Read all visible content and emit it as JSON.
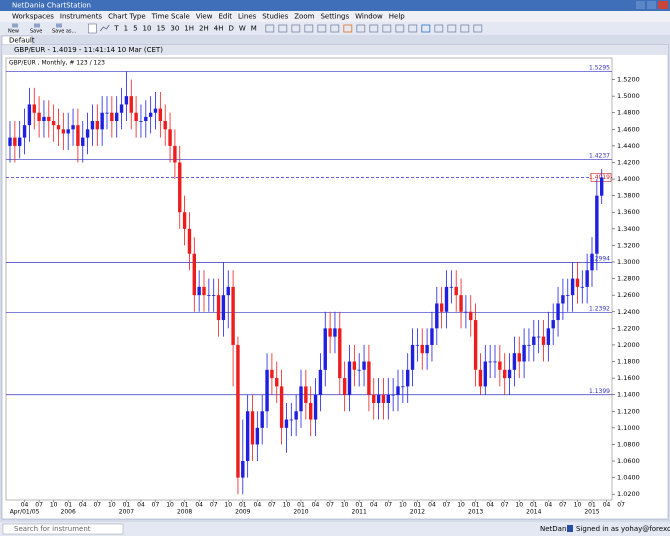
{
  "window": {
    "title": "NetDania ChartStation"
  },
  "menu": [
    "Workspaces",
    "Instruments",
    "Chart Type",
    "Time Scale",
    "View",
    "Edit",
    "Lines",
    "Studies",
    "Zoom",
    "Settings",
    "Window",
    "Help"
  ],
  "toolbar": {
    "buttons": [
      "New",
      "Save",
      "Save as..."
    ],
    "periods": [
      "T",
      "1",
      "5",
      "10",
      "15",
      "30",
      "1H",
      "2H",
      "4H",
      "D",
      "W",
      "M"
    ]
  },
  "tab": "Default",
  "chart_data": {
    "type": "candlestick",
    "title": "GBP/EUR - 1.4019 - 11:41:14 10 Mar (CET)",
    "subtitle": "GBP/EUR , Monthly, # 123 / 123",
    "series": [
      {
        "up_color": "#1f1fe0",
        "down_color": "#ee1c1c",
        "open": [
          1.44,
          1.45,
          1.44,
          1.45,
          1.465,
          1.49,
          1.48,
          1.47,
          1.475,
          1.47,
          1.465,
          1.46,
          1.455,
          1.46,
          1.465,
          1.44,
          1.45,
          1.46,
          1.47,
          1.46,
          1.48,
          1.48,
          1.47,
          1.48,
          1.49,
          1.5,
          1.48,
          1.47,
          1.47,
          1.475,
          1.48,
          1.485,
          1.47,
          1.46,
          1.44,
          1.42,
          1.36,
          1.34,
          1.31,
          1.26,
          1.27,
          1.26,
          1.26,
          1.26,
          1.23,
          1.26,
          1.27,
          1.2,
          1.04,
          1.06,
          1.12,
          1.08,
          1.1,
          1.12,
          1.17,
          1.16,
          1.15,
          1.1,
          1.11,
          1.11,
          1.12,
          1.15,
          1.13,
          1.11,
          1.14,
          1.17,
          1.22,
          1.21,
          1.22,
          1.16,
          1.14,
          1.18,
          1.17,
          1.17,
          1.18,
          1.14,
          1.13,
          1.14,
          1.13,
          1.14,
          1.14,
          1.15,
          1.15,
          1.17,
          1.2,
          1.2,
          1.19,
          1.2,
          1.22,
          1.25,
          1.24,
          1.27,
          1.27,
          1.26,
          1.24,
          1.24,
          1.23,
          1.17,
          1.15,
          1.18,
          1.18,
          1.18,
          1.17,
          1.16,
          1.17,
          1.19,
          1.18,
          1.2,
          1.2,
          1.21,
          1.21,
          1.2,
          1.22,
          1.23,
          1.25,
          1.26,
          1.26,
          1.28,
          1.27,
          1.27,
          1.29,
          1.31,
          1.38
        ],
        "high": [
          1.47,
          1.47,
          1.47,
          1.485,
          1.51,
          1.51,
          1.5,
          1.495,
          1.495,
          1.49,
          1.485,
          1.48,
          1.48,
          1.485,
          1.485,
          1.47,
          1.48,
          1.49,
          1.49,
          1.5,
          1.5,
          1.5,
          1.5,
          1.51,
          1.53,
          1.52,
          1.5,
          1.49,
          1.495,
          1.5,
          1.505,
          1.505,
          1.49,
          1.48,
          1.46,
          1.44,
          1.38,
          1.36,
          1.33,
          1.29,
          1.29,
          1.28,
          1.28,
          1.28,
          1.3,
          1.29,
          1.29,
          1.21,
          1.11,
          1.14,
          1.14,
          1.12,
          1.14,
          1.19,
          1.19,
          1.18,
          1.17,
          1.13,
          1.13,
          1.14,
          1.17,
          1.17,
          1.15,
          1.16,
          1.19,
          1.24,
          1.24,
          1.24,
          1.24,
          1.18,
          1.2,
          1.2,
          1.19,
          1.2,
          1.2,
          1.16,
          1.16,
          1.16,
          1.16,
          1.16,
          1.17,
          1.17,
          1.19,
          1.22,
          1.22,
          1.22,
          1.22,
          1.24,
          1.27,
          1.27,
          1.29,
          1.29,
          1.29,
          1.28,
          1.26,
          1.26,
          1.25,
          1.19,
          1.2,
          1.2,
          1.2,
          1.2,
          1.19,
          1.19,
          1.21,
          1.21,
          1.22,
          1.22,
          1.23,
          1.23,
          1.23,
          1.24,
          1.25,
          1.27,
          1.28,
          1.28,
          1.3,
          1.3,
          1.29,
          1.31,
          1.33,
          1.4,
          1.412
        ],
        "low": [
          1.42,
          1.42,
          1.425,
          1.43,
          1.445,
          1.46,
          1.45,
          1.45,
          1.45,
          1.445,
          1.44,
          1.435,
          1.435,
          1.44,
          1.42,
          1.42,
          1.43,
          1.44,
          1.44,
          1.44,
          1.46,
          1.45,
          1.45,
          1.46,
          1.47,
          1.46,
          1.45,
          1.45,
          1.45,
          1.455,
          1.46,
          1.45,
          1.44,
          1.42,
          1.4,
          1.34,
          1.32,
          1.29,
          1.24,
          1.24,
          1.24,
          1.24,
          1.24,
          1.21,
          1.21,
          1.22,
          1.15,
          1.02,
          1.02,
          1.04,
          1.06,
          1.06,
          1.08,
          1.1,
          1.14,
          1.13,
          1.08,
          1.07,
          1.09,
          1.09,
          1.1,
          1.11,
          1.09,
          1.09,
          1.12,
          1.15,
          1.19,
          1.19,
          1.14,
          1.12,
          1.12,
          1.15,
          1.15,
          1.15,
          1.12,
          1.11,
          1.11,
          1.11,
          1.11,
          1.12,
          1.12,
          1.13,
          1.13,
          1.15,
          1.18,
          1.17,
          1.17,
          1.18,
          1.2,
          1.22,
          1.22,
          1.25,
          1.24,
          1.22,
          1.22,
          1.21,
          1.15,
          1.14,
          1.14,
          1.16,
          1.16,
          1.15,
          1.14,
          1.14,
          1.15,
          1.16,
          1.16,
          1.18,
          1.18,
          1.19,
          1.18,
          1.18,
          1.2,
          1.21,
          1.23,
          1.24,
          1.24,
          1.25,
          1.25,
          1.25,
          1.27,
          1.29,
          1.37
        ],
        "close": [
          1.45,
          1.44,
          1.45,
          1.465,
          1.49,
          1.48,
          1.47,
          1.475,
          1.47,
          1.465,
          1.46,
          1.455,
          1.46,
          1.465,
          1.44,
          1.45,
          1.46,
          1.47,
          1.46,
          1.48,
          1.48,
          1.47,
          1.48,
          1.49,
          1.5,
          1.48,
          1.47,
          1.47,
          1.475,
          1.48,
          1.485,
          1.47,
          1.46,
          1.44,
          1.42,
          1.36,
          1.34,
          1.31,
          1.26,
          1.27,
          1.26,
          1.26,
          1.26,
          1.23,
          1.26,
          1.27,
          1.2,
          1.04,
          1.06,
          1.12,
          1.08,
          1.1,
          1.12,
          1.17,
          1.16,
          1.15,
          1.1,
          1.11,
          1.11,
          1.12,
          1.15,
          1.13,
          1.11,
          1.14,
          1.17,
          1.22,
          1.21,
          1.22,
          1.16,
          1.14,
          1.18,
          1.17,
          1.17,
          1.18,
          1.14,
          1.13,
          1.14,
          1.13,
          1.14,
          1.14,
          1.15,
          1.15,
          1.17,
          1.2,
          1.2,
          1.19,
          1.2,
          1.22,
          1.25,
          1.24,
          1.27,
          1.27,
          1.26,
          1.24,
          1.24,
          1.23,
          1.17,
          1.15,
          1.18,
          1.18,
          1.18,
          1.17,
          1.16,
          1.17,
          1.19,
          1.18,
          1.2,
          1.2,
          1.21,
          1.21,
          1.2,
          1.22,
          1.23,
          1.25,
          1.26,
          1.26,
          1.28,
          1.27,
          1.27,
          1.29,
          1.31,
          1.38,
          1.402
        ]
      }
    ],
    "month_labels": [
      "04",
      "07",
      "10",
      "01",
      "04",
      "07",
      "10",
      "01",
      "04",
      "07",
      "10",
      "01",
      "04",
      "07",
      "10",
      "01",
      "04",
      "07",
      "10",
      "01",
      "04",
      "07",
      "10",
      "01",
      "04",
      "07",
      "10",
      "01",
      "04",
      "07",
      "10",
      "01",
      "04",
      "07",
      "10",
      "01",
      "04",
      "07",
      "10",
      "01",
      "04",
      "07"
    ],
    "year_labels": [
      "Apr/01/05",
      "2006",
      "2007",
      "2008",
      "2009",
      "2010",
      "2011",
      "2012",
      "2013",
      "2014",
      "2015"
    ],
    "ylim": [
      1.013,
      1.546
    ],
    "yticks": [
      {
        "value": 1.02,
        "label": "1.0200"
      },
      {
        "value": 1.04,
        "label": "1.0400"
      },
      {
        "value": 1.06,
        "label": "1.0600"
      },
      {
        "value": 1.08,
        "label": "1.0800"
      },
      {
        "value": 1.1,
        "label": "1.1000"
      },
      {
        "value": 1.12,
        "label": "1.1200"
      },
      {
        "value": 1.14,
        "label": "1.1400"
      },
      {
        "value": 1.16,
        "label": "1.1600"
      },
      {
        "value": 1.18,
        "label": "1.1800"
      },
      {
        "value": 1.2,
        "label": "1.2000"
      },
      {
        "value": 1.22,
        "label": "1.2200"
      },
      {
        "value": 1.24,
        "label": "1.2400"
      },
      {
        "value": 1.26,
        "label": "1.2600"
      },
      {
        "value": 1.28,
        "label": "1.2800"
      },
      {
        "value": 1.3,
        "label": "1.3000"
      },
      {
        "value": 1.32,
        "label": "1.3200"
      },
      {
        "value": 1.34,
        "label": "1.3400"
      },
      {
        "value": 1.36,
        "label": "1.3600"
      },
      {
        "value": 1.38,
        "label": "1.3800"
      },
      {
        "value": 1.4,
        "label": "1.4000"
      },
      {
        "value": 1.42,
        "label": "1.4200"
      },
      {
        "value": 1.44,
        "label": "1.4400"
      },
      {
        "value": 1.46,
        "label": "1.4600"
      },
      {
        "value": 1.48,
        "label": "1.4800"
      },
      {
        "value": 1.5,
        "label": "1.5000"
      },
      {
        "value": 1.52,
        "label": "1.5200"
      }
    ],
    "lines": [
      {
        "value": 1.5295,
        "label": "1.5295"
      },
      {
        "value": 1.4237,
        "label": "1.4237"
      },
      {
        "value": 1.2994,
        "label": "1.2994"
      },
      {
        "value": 1.2392,
        "label": "1.2392"
      },
      {
        "value": 1.1399,
        "label": "1.1399"
      }
    ],
    "current": {
      "value": 1.4019,
      "label": "1.4019"
    }
  },
  "status": {
    "search": "Search for instrument",
    "brand": "NetDania",
    "signed_in": "Signed in as yohay@forexcrunch.com"
  }
}
